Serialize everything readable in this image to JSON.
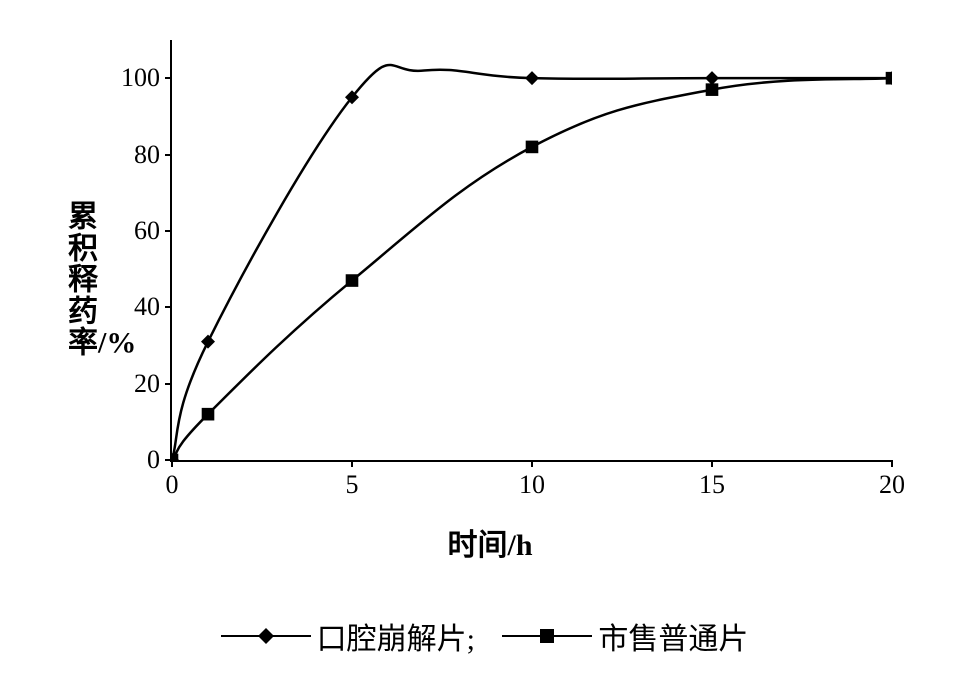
{
  "chart": {
    "type": "line",
    "ylabel_text": "累积释药率/%",
    "xlabel_text": "时间/h",
    "xlim": [
      0,
      20
    ],
    "ylim": [
      0,
      110
    ],
    "xticks": [
      0,
      5,
      10,
      15,
      20
    ],
    "yticks": [
      0,
      20,
      40,
      60,
      80,
      100
    ],
    "background_color": "#ffffff",
    "axis_color": "#000000",
    "tick_fontsize": 26,
    "label_fontsize": 30,
    "series": [
      {
        "name": "口腔崩解片",
        "marker": "diamond",
        "marker_size": 14,
        "line_width": 2.5,
        "color": "#000000",
        "x": [
          0,
          1,
          5,
          10,
          15,
          20
        ],
        "y": [
          0,
          31,
          95,
          100,
          100,
          100
        ]
      },
      {
        "name": "市售普通片",
        "marker": "square",
        "marker_size": 14,
        "line_width": 2.5,
        "color": "#000000",
        "x": [
          0,
          1,
          5,
          10,
          15,
          20
        ],
        "y": [
          0,
          12,
          47,
          82,
          97,
          100
        ]
      }
    ],
    "legend": {
      "items": [
        {
          "marker": "diamond",
          "label": "口腔崩解片;"
        },
        {
          "marker": "square",
          "label": "市售普通片"
        }
      ]
    },
    "curve_overshoot_note": "series 0 shows slight smooth overshoot above 100 near x=6-8"
  }
}
